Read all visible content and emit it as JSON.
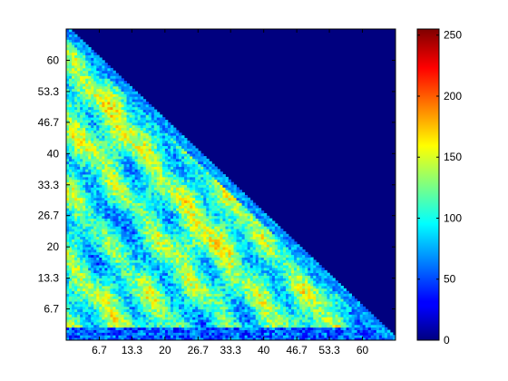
{
  "chart_data": {
    "type": "heatmap",
    "title": "",
    "xlabel": "",
    "ylabel": "",
    "x_ticks": [
      "6.7",
      "13.3",
      "20",
      "26.7",
      "33.3",
      "40",
      "46.7",
      "53.3",
      "60"
    ],
    "x_tick_values": [
      6.7,
      13.3,
      20,
      26.7,
      33.3,
      40,
      46.7,
      53.3,
      60
    ],
    "y_ticks": [
      "6.7",
      "13.3",
      "20",
      "26.7",
      "33.3",
      "40",
      "46.7",
      "53.3",
      "60"
    ],
    "y_tick_values": [
      6.7,
      13.3,
      20,
      26.7,
      33.3,
      40,
      46.7,
      53.3,
      60
    ],
    "xlim": [
      0,
      66.7
    ],
    "ylim": [
      0,
      66.7
    ],
    "colormap": "jet",
    "background_value": 0,
    "colorbar": {
      "range": [
        0,
        255
      ],
      "ticks": [
        "0",
        "50",
        "100",
        "150",
        "200",
        "250"
      ],
      "tick_values": [
        0,
        50,
        100,
        150,
        200,
        250
      ]
    },
    "mask": "lower-left triangle populated (x + y <= 66.7); upper-right triangle = 0"
  }
}
